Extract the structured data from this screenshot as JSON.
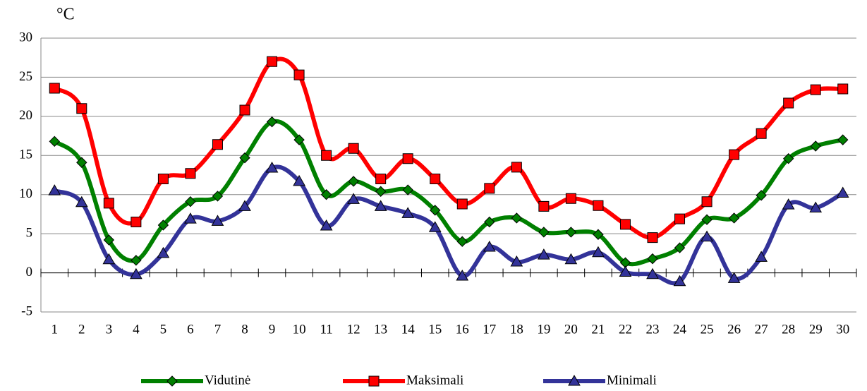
{
  "chart_data": {
    "type": "line",
    "y_label": "°C",
    "categories": [
      "1",
      "2",
      "3",
      "4",
      "5",
      "6",
      "7",
      "8",
      "9",
      "10",
      "11",
      "12",
      "13",
      "14",
      "15",
      "16",
      "17",
      "18",
      "19",
      "20",
      "21",
      "22",
      "23",
      "24",
      "25",
      "26",
      "27",
      "28",
      "29",
      "30"
    ],
    "series": [
      {
        "name": "Vidutinė",
        "color": "#008000",
        "marker": "diamond",
        "values": [
          16.8,
          14.1,
          4.2,
          1.6,
          6.1,
          9.1,
          9.8,
          14.7,
          19.3,
          17.0,
          10.0,
          11.7,
          10.4,
          10.6,
          8.0,
          4.0,
          6.5,
          7.0,
          5.2,
          5.2,
          4.9,
          1.3,
          1.8,
          3.2,
          6.8,
          7.0,
          9.9,
          14.6,
          16.2,
          17.0
        ]
      },
      {
        "name": "Maksimali",
        "color": "#ff0000",
        "marker": "square",
        "values": [
          23.6,
          21.0,
          8.9,
          6.5,
          12.0,
          12.7,
          16.4,
          20.8,
          27.0,
          25.3,
          15.0,
          15.9,
          12.0,
          14.6,
          12.0,
          8.8,
          10.8,
          13.5,
          8.5,
          9.5,
          8.6,
          6.2,
          4.5,
          6.9,
          9.1,
          15.1,
          17.8,
          21.7,
          23.4,
          23.5
        ]
      },
      {
        "name": "Minimali",
        "color": "#333399",
        "marker": "triangle",
        "values": [
          10.5,
          9.0,
          1.7,
          -0.2,
          2.5,
          6.9,
          6.6,
          8.5,
          13.4,
          11.7,
          6.0,
          9.4,
          8.5,
          7.6,
          5.8,
          -0.4,
          3.3,
          1.4,
          2.3,
          1.7,
          2.6,
          0.1,
          -0.2,
          -1.1,
          4.6,
          -0.7,
          2.0,
          8.7,
          8.3,
          10.2
        ]
      }
    ],
    "ylim": [
      -5,
      30
    ],
    "yticks": [
      -5,
      0,
      5,
      10,
      15,
      20,
      25,
      30
    ],
    "grid": true,
    "smooth": true,
    "legend": "bottom"
  }
}
